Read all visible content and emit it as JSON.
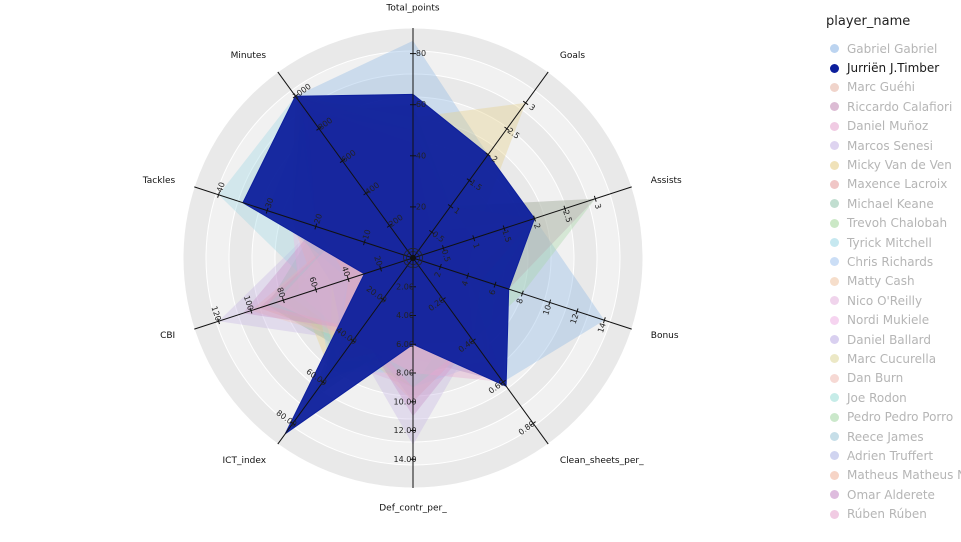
{
  "chart_data": {
    "type": "radar",
    "legend_title": "player_name",
    "legend_position": "right",
    "axes": [
      {
        "name": "Total_points",
        "max": 90,
        "ticks": [
          0,
          20,
          40,
          60,
          80
        ],
        "tick_labels": [
          "0",
          "20",
          "40",
          "60",
          "80"
        ]
      },
      {
        "name": "Goals",
        "max": 3.6,
        "ticks": [
          0,
          0.5,
          1,
          1.5,
          2,
          2.5,
          3
        ],
        "tick_labels": [
          "0",
          "0.5",
          "1",
          "1.5",
          "2",
          "2.5",
          "3"
        ]
      },
      {
        "name": "Assists",
        "max": 3.6,
        "ticks": [
          0,
          0.5,
          1,
          1.5,
          2,
          2.5,
          3
        ],
        "tick_labels": [
          "0",
          "0.5",
          "1",
          "1.5",
          "2",
          "2.5",
          "3"
        ]
      },
      {
        "name": "Bonus",
        "max": 16,
        "ticks": [
          0,
          2,
          4,
          6,
          8,
          10,
          12,
          14
        ],
        "tick_labels": [
          "0",
          "2",
          "4",
          "6",
          "8",
          "10",
          "12",
          "14"
        ]
      },
      {
        "name": "Clean_sheets_per_",
        "max": 0.9,
        "ticks": [
          0,
          0.2,
          0.4,
          0.6,
          0.8
        ],
        "tick_labels": [
          "0",
          "0.20",
          "0.40",
          "0.60",
          "0.80"
        ]
      },
      {
        "name": "Def_contr_per_",
        "max": 16,
        "ticks": [
          0,
          2,
          4,
          6,
          8,
          10,
          12,
          14
        ],
        "tick_labels": [
          "0",
          "2.00",
          "4.00",
          "6.00",
          "8.00",
          "10.00",
          "12.00",
          "14.00"
        ]
      },
      {
        "name": "ICT_index",
        "max": 90,
        "ticks": [
          0,
          20,
          40,
          60,
          80
        ],
        "tick_labels": [
          "0",
          "20.00",
          "40.00",
          "60.00",
          "80.00"
        ]
      },
      {
        "name": "CBI",
        "max": 135,
        "ticks": [
          0,
          20,
          40,
          60,
          80,
          100,
          120
        ],
        "tick_labels": [
          "0",
          "20",
          "40",
          "60",
          "80",
          "100",
          "120"
        ]
      },
      {
        "name": "Tackles",
        "max": 45,
        "ticks": [
          0,
          10,
          20,
          30,
          40
        ],
        "tick_labels": [
          "0",
          "10",
          "20",
          "30",
          "40"
        ]
      },
      {
        "name": "Minutes",
        "max": 1150,
        "ticks": [
          0,
          200,
          400,
          600,
          800,
          1000
        ],
        "tick_labels": [
          "0",
          "200",
          "400",
          "600",
          "800",
          "1000"
        ]
      }
    ],
    "highlighted_series": "Jurriën J.Timber",
    "series": [
      {
        "name": "Gabriel Gabriel",
        "color": "#8fb8e6",
        "values": [
          85,
          2,
          2,
          14,
          0.6,
          7,
          50,
          70,
          20,
          1000
        ]
      },
      {
        "name": "Jurriën J.Timber",
        "color": "#0d1f9c",
        "values": [
          64,
          2,
          2,
          7,
          0.62,
          6,
          85,
          30,
          35,
          1000
        ]
      },
      {
        "name": "Marc Guéhi",
        "color": "#e6b8a8",
        "values": [
          50,
          0.5,
          1,
          4,
          0.4,
          8,
          45,
          90,
          15,
          1000
        ]
      },
      {
        "name": "Riccardo Calafiori",
        "color": "#c48fb8",
        "values": [
          60,
          1,
          3,
          7,
          0.6,
          7,
          45,
          45,
          20,
          900
        ]
      },
      {
        "name": "Daniel Muñoz",
        "color": "#e6a8d0",
        "values": [
          55,
          1,
          2,
          5,
          0.4,
          9,
          50,
          60,
          25,
          1000
        ]
      },
      {
        "name": "Marcos Senesi",
        "color": "#c8b8e6",
        "values": [
          48,
          0.5,
          1,
          4,
          0.4,
          13,
          40,
          120,
          20,
          1000
        ]
      },
      {
        "name": "Micky Van de Ven",
        "color": "#e6cf8a",
        "values": [
          55,
          3,
          1,
          5,
          0.5,
          7,
          55,
          70,
          10,
          900
        ]
      },
      {
        "name": "Maxence Lacroix",
        "color": "#e6a0a0",
        "values": [
          40,
          0.5,
          2,
          3,
          0.3,
          7,
          40,
          95,
          15,
          1000
        ]
      },
      {
        "name": "Michael Keane",
        "color": "#98c8b0",
        "values": [
          45,
          1,
          1,
          5,
          0.5,
          8,
          45,
          90,
          20,
          950
        ]
      },
      {
        "name": "Trevoh Chalobah",
        "color": "#a8d8a0",
        "values": [
          50,
          1,
          1,
          4,
          0.4,
          9,
          45,
          80,
          15,
          900
        ]
      },
      {
        "name": "Tyrick Mitchell",
        "color": "#a0d8e6",
        "values": [
          50,
          0.5,
          2,
          5,
          0.5,
          8,
          55,
          60,
          40,
          1000
        ]
      },
      {
        "name": "Chris Richards",
        "color": "#a8c8f0",
        "values": [
          45,
          1,
          1,
          4,
          0.5,
          9,
          40,
          75,
          15,
          900
        ]
      },
      {
        "name": "Matty Cash",
        "color": "#f0c8a8",
        "values": [
          52,
          1,
          2,
          5,
          0.5,
          7,
          50,
          60,
          25,
          950
        ]
      },
      {
        "name": "Nico O'Reilly",
        "color": "#e6b8e0",
        "values": [
          48,
          1,
          1,
          4,
          0.6,
          6,
          45,
          40,
          20,
          900
        ]
      },
      {
        "name": "Nordi Mukiele",
        "color": "#f0b8e6",
        "values": [
          40,
          0.5,
          1,
          3,
          0.3,
          9,
          40,
          70,
          25,
          900
        ]
      },
      {
        "name": "Daniel Ballard",
        "color": "#c0b0e6",
        "values": [
          42,
          1,
          0.5,
          3,
          0.4,
          10,
          35,
          95,
          15,
          950
        ]
      },
      {
        "name": "Marc Cucurella",
        "color": "#e0d8a0",
        "values": [
          55,
          1,
          2,
          6,
          0.5,
          6,
          55,
          50,
          25,
          1000
        ]
      },
      {
        "name": "Dan Burn",
        "color": "#f0c0b8",
        "values": [
          45,
          1,
          1,
          4,
          0.4,
          10,
          40,
          100,
          15,
          1000
        ]
      },
      {
        "name": "Joe Rodon",
        "color": "#a0e0d8",
        "values": [
          40,
          0.5,
          0.5,
          3,
          0.4,
          9,
          35,
          90,
          15,
          950
        ]
      },
      {
        "name": "Pedro Pedro Porro",
        "color": "#a8d8a8",
        "values": [
          60,
          1,
          3,
          8,
          0.4,
          5,
          70,
          30,
          25,
          950
        ]
      },
      {
        "name": "Reece James",
        "color": "#a0c8d8",
        "values": [
          55,
          1,
          2,
          6,
          0.5,
          6,
          60,
          40,
          30,
          900
        ]
      },
      {
        "name": "Adrien Truffert",
        "color": "#b0b8e6",
        "values": [
          45,
          0.5,
          2,
          4,
          0.4,
          6,
          45,
          50,
          25,
          950
        ]
      },
      {
        "name": "Matheus Matheus N",
        "color": "#f0b8a0",
        "values": [
          50,
          1,
          2,
          5,
          0.4,
          6,
          50,
          40,
          20,
          900
        ]
      },
      {
        "name": "Omar Alderete",
        "color": "#c890c8",
        "values": [
          40,
          0.5,
          0.5,
          3,
          0.4,
          11,
          35,
          105,
          20,
          950
        ]
      },
      {
        "name": "Rúben Rúben",
        "color": "#e8a8d0",
        "values": [
          50,
          1,
          1,
          4,
          0.6,
          8,
          40,
          85,
          15,
          1000
        ]
      }
    ]
  }
}
